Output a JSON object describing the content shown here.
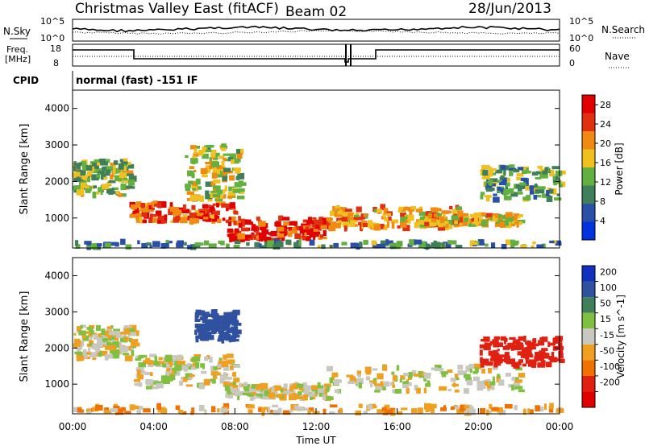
{
  "header": {
    "title": "Christmas Valley East (fitACF)",
    "beam": "Beam 02",
    "date": "28/Jun/2013"
  },
  "top_panels": {
    "nsky_label": "N.Sky",
    "nsky_ticks": [
      "10^5",
      "10^0"
    ],
    "nsearch_label": "N.Search",
    "nsearch_ticks": [
      "10^5",
      "10^0"
    ],
    "freq_label_line1": "Freq.",
    "freq_label_line2": "[MHz]",
    "freq_ticks": [
      "18",
      "8"
    ],
    "nave_label": "Nave",
    "nave_ticks": [
      "60",
      "0"
    ],
    "cpid_label": "CPID",
    "cpid_text": "normal (fast) -151 IF"
  },
  "chart_data": [
    {
      "type": "heatmap",
      "name": "power",
      "ylabel": "Slant Range [km]",
      "xlabel": "",
      "xlim": [
        "00:00",
        "24:00"
      ],
      "ylim": [
        180,
        4500
      ],
      "yticks": [
        "1000",
        "2000",
        "3000",
        "4000"
      ],
      "colorbar": {
        "label": "Power [dB]",
        "ticks": [
          "4",
          "8",
          "12",
          "16",
          "20",
          "24",
          "28"
        ],
        "range": [
          0,
          30
        ],
        "colors": [
          "#0033dd",
          "#2a4fa8",
          "#3f7f5a",
          "#62b040",
          "#f0c020",
          "#f08a10",
          "#e03010",
          "#e00000"
        ]
      },
      "regions": [
        {
          "t0": 0.0,
          "t1": 2.8,
          "r0": 1600,
          "r1": 2600,
          "level": 14
        },
        {
          "t0": 2.8,
          "t1": 8.0,
          "r0": 900,
          "r1": 1400,
          "level": 24
        },
        {
          "t0": 5.5,
          "t1": 8.2,
          "r0": 1500,
          "r1": 3000,
          "level": 16
        },
        {
          "t0": 7.5,
          "t1": 12.5,
          "r0": 400,
          "r1": 1000,
          "level": 26
        },
        {
          "t0": 12.5,
          "t1": 19.0,
          "r0": 700,
          "r1": 1300,
          "level": 20
        },
        {
          "t0": 17.0,
          "t1": 22.0,
          "r0": 800,
          "r1": 1100,
          "level": 18
        },
        {
          "t0": 20.0,
          "t1": 24.0,
          "r0": 1500,
          "r1": 2400,
          "level": 12
        },
        {
          "t0": 0.0,
          "t1": 24.0,
          "r0": 200,
          "r1": 350,
          "level": 10
        }
      ]
    },
    {
      "type": "heatmap",
      "name": "velocity",
      "ylabel": "Slant Range [km]",
      "xlabel": "Time UT",
      "xlim": [
        "00:00",
        "24:00"
      ],
      "ylim": [
        180,
        4500
      ],
      "yticks": [
        "1000",
        "2000",
        "3000",
        "4000"
      ],
      "xticks": [
        "00:00",
        "04:00",
        "08:00",
        "12:00",
        "16:00",
        "20:00",
        "00:00"
      ],
      "colorbar": {
        "label": "Velocity [m s^-1]",
        "ticks": [
          "200",
          "100",
          "50",
          "15",
          "-15",
          "-50",
          "-100",
          "-200"
        ],
        "colors": [
          "#1030c0",
          "#3050a0",
          "#3f7f5a",
          "#80c040",
          "#c8c8c0",
          "#f0a020",
          "#f07000",
          "#e02010",
          "#e00000"
        ]
      },
      "regions": [
        {
          "t0": 0.0,
          "t1": 3.0,
          "r0": 1700,
          "r1": 2600,
          "v": 0
        },
        {
          "t0": 3.0,
          "t1": 8.0,
          "r0": 900,
          "r1": 1800,
          "v": 0
        },
        {
          "t0": 6.0,
          "t1": 8.0,
          "r0": 2200,
          "r1": 3000,
          "v": 150
        },
        {
          "t0": 7.5,
          "t1": 12.5,
          "r0": 600,
          "r1": 1000,
          "v": 0
        },
        {
          "t0": 12.5,
          "t1": 22.0,
          "r0": 800,
          "r1": 1500,
          "v": 0
        },
        {
          "t0": 20.0,
          "t1": 24.0,
          "r0": 1500,
          "r1": 2300,
          "v": -150
        },
        {
          "t0": 0.0,
          "t1": 24.0,
          "r0": 200,
          "r1": 400,
          "v": -40
        }
      ]
    }
  ]
}
